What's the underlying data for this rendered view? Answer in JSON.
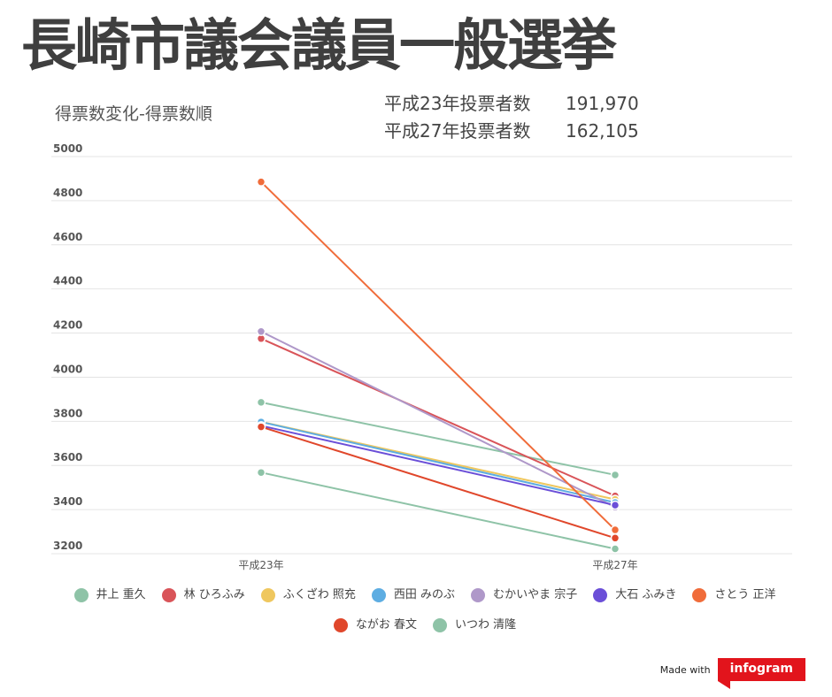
{
  "header": {
    "title": "長崎市議会議員一般選挙",
    "subtitle": "得票数変化-得票数順"
  },
  "stats": [
    {
      "label": "平成23年投票者数",
      "value": "191,970"
    },
    {
      "label": "平成27年投票者数",
      "value": "162,105"
    }
  ],
  "footer": {
    "made_with": "Made with",
    "brand": "infogram",
    "brand_color": "#e2141c"
  },
  "chart_data": {
    "type": "line",
    "categories": [
      "平成23年",
      "平成27年"
    ],
    "ylim": [
      3200,
      5000
    ],
    "yticks": [
      3200,
      3400,
      3600,
      3800,
      4000,
      4200,
      4400,
      4600,
      4800,
      5000
    ],
    "grid": true,
    "legend_position": "bottom",
    "series": [
      {
        "name": "井上 重久",
        "color": "#8ec3a7",
        "values": [
          3886,
          3557
        ]
      },
      {
        "name": "林 ひろふみ",
        "color": "#d95459",
        "values": [
          4175,
          3462
        ]
      },
      {
        "name": "ふくざわ 照充",
        "color": "#efc75e",
        "values": [
          3798,
          3446
        ]
      },
      {
        "name": "西田 みのぶ",
        "color": "#5dade2",
        "values": [
          3797,
          3432
        ]
      },
      {
        "name": "むかいやま 宗子",
        "color": "#af98c9",
        "values": [
          4207,
          3411
        ]
      },
      {
        "name": "大石 ふみき",
        "color": "#6b4fd8",
        "values": [
          3780,
          3420
        ]
      },
      {
        "name": "さとう 正洋",
        "color": "#f06c3a",
        "values": [
          4885,
          3308
        ]
      },
      {
        "name": "ながお 春文",
        "color": "#e0472b",
        "values": [
          3775,
          3271
        ]
      },
      {
        "name": "いつわ 清隆",
        "color": "#8ec3a7",
        "values": [
          3568,
          3222
        ]
      }
    ]
  }
}
